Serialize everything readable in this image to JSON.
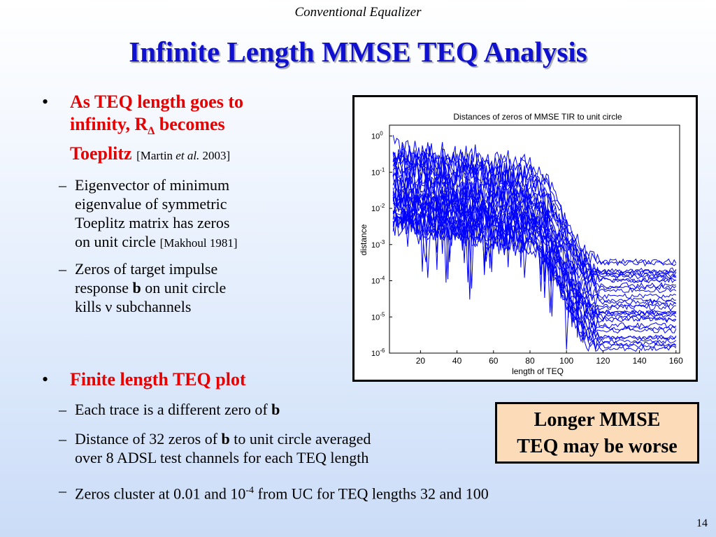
{
  "header": {
    "title": "Conventional Equalizer"
  },
  "slide": {
    "title": "Infinite Length MMSE TEQ Analysis",
    "page_number": "14"
  },
  "bullets": {
    "b1": {
      "line1": "As TEQ length goes to",
      "line2_a": "infinity, R",
      "line2_sub": "Δ",
      "line2_b": " becomes",
      "line3": "Toeplitz",
      "cite_a": "[Martin ",
      "cite_i": "et al.",
      "cite_b": " 2003]",
      "subs": {
        "s1": {
          "line1": "Eigenvector of minimum",
          "line2": "eigenvalue of symmetric",
          "line3": "Toeplitz matrix has zeros",
          "line4": "on unit circle ",
          "cite": "[Makhoul 1981]"
        },
        "s2": {
          "line1": "Zeros of target impulse",
          "line2_a": "response ",
          "line2_b": "b",
          "line2_c": " on unit circle",
          "line3": "kills ν subchannels"
        }
      }
    },
    "b2": {
      "label": "Finite length TEQ plot",
      "subs": {
        "s1": {
          "a": "Each trace is a different zero of ",
          "b": "b"
        },
        "s2": {
          "a": "Distance of 32 zeros of ",
          "b": "b",
          "c": " to unit circle averaged",
          "line2": "over 8 ADSL test channels for each TEQ length"
        },
        "s3": {
          "a": "Zeros cluster at 0.01 and 10",
          "sup": "-4",
          "b": " from UC for TEQ lengths 32 and 100"
        }
      }
    }
  },
  "callout": {
    "line1": "Longer MMSE",
    "line2": "TEQ may be worse"
  },
  "chart_data": {
    "type": "line",
    "title": "Distances of zeros of MMSE TIR to unit circle",
    "xlabel": "length of TEQ",
    "ylabel": "distance",
    "x_ticks": [
      "20",
      "40",
      "60",
      "80",
      "100",
      "120",
      "140",
      "160"
    ],
    "y_ticks": [
      {
        "base": "10",
        "exp": "0"
      },
      {
        "base": "10",
        "exp": "-1"
      },
      {
        "base": "10",
        "exp": "-2"
      },
      {
        "base": "10",
        "exp": "-3"
      },
      {
        "base": "10",
        "exp": "-4"
      },
      {
        "base": "10",
        "exp": "-5"
      },
      {
        "base": "10",
        "exp": "-6"
      }
    ],
    "xlim": [
      3,
      162
    ],
    "ylim_log10": [
      -6,
      0.3
    ],
    "yscale": "log",
    "line_color": "#0000ff",
    "n_series": 32
  }
}
